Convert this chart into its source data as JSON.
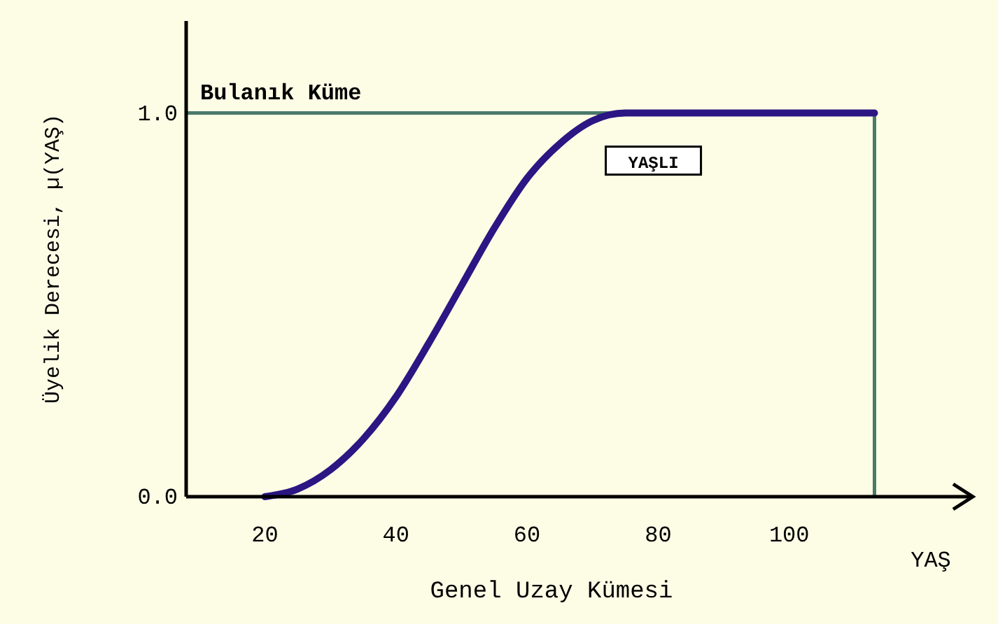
{
  "chart_data": {
    "type": "line",
    "xlabel": "Genel Uzay Kümesi",
    "ylabel": "Üyelik Derecesi, µ(YAŞ)",
    "annotations": [
      "YAŞ"
    ],
    "xlim": [
      8,
      128
    ],
    "xticks": [
      20,
      40,
      60,
      80,
      100
    ],
    "ylim": [
      0,
      1.24
    ],
    "yticks": [
      {
        "value": 0,
        "label": "0.0"
      },
      {
        "value": 1,
        "label": "1.0"
      }
    ],
    "x": [
      20,
      25,
      30,
      35,
      40,
      45,
      50,
      55,
      60,
      65,
      70,
      75,
      113
    ],
    "series": [
      {
        "name": "YAŞLI",
        "color": "#2b1683",
        "values": [
          0,
          0.02,
          0.07,
          0.15,
          0.26,
          0.4,
          0.55,
          0.7,
          0.83,
          0.92,
          0.98,
          1,
          1
        ]
      }
    ],
    "ref_lines": [
      {
        "axis": "y",
        "value": 1,
        "label": "Bulanık Küme",
        "color": "#4a7a6a"
      },
      {
        "axis": "x",
        "value": 113,
        "color": "#4a7a6a"
      }
    ],
    "marker": "none",
    "line_style": "solid"
  }
}
